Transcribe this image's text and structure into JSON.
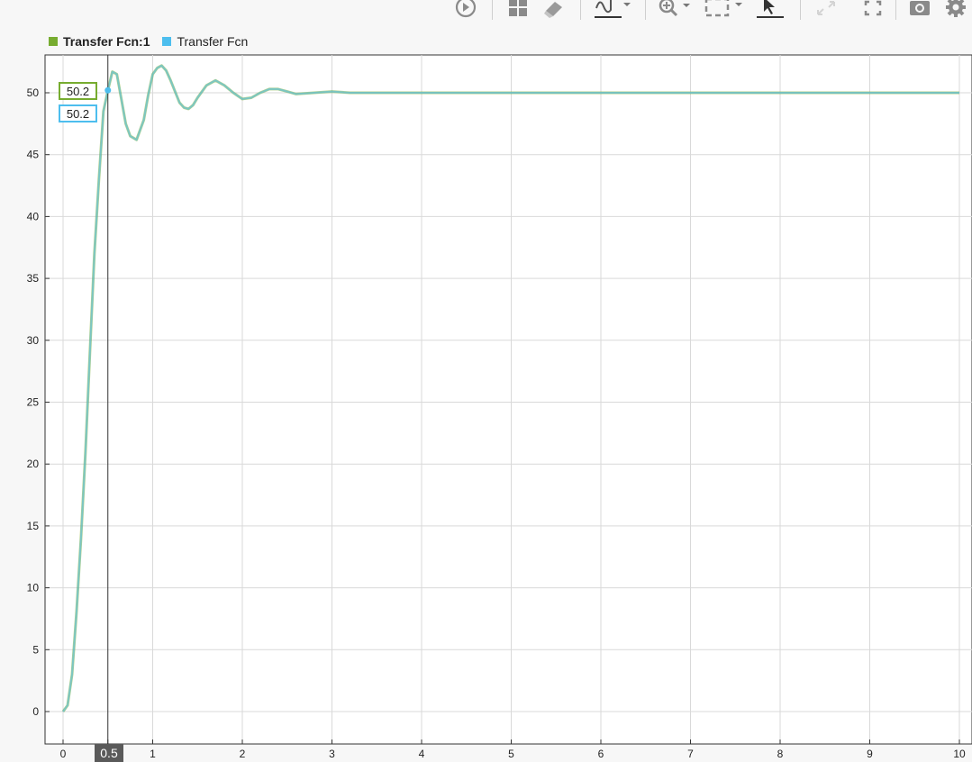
{
  "toolbar": {
    "icons": [
      "run-icon",
      "layout-icon",
      "eraser-icon",
      "signal-style-icon",
      "zoom-icon",
      "fit-to-view-icon",
      "cursor-icon",
      "restore-icon",
      "fullscreen-icon",
      "camera-icon",
      "gear-icon"
    ]
  },
  "legend": {
    "entries": [
      {
        "label": "Transfer Fcn:1",
        "color": "#77ac30",
        "bold": true
      },
      {
        "label": "Transfer Fcn",
        "color": "#4dbeee",
        "bold": false
      }
    ]
  },
  "cursor": {
    "x_label": "0.5",
    "x_value": 0.5,
    "values": [
      "50.2",
      "50.2"
    ]
  },
  "chart_data": {
    "type": "line",
    "title": "",
    "xlabel": "",
    "ylabel": "",
    "xlim": [
      0,
      10
    ],
    "ylim": [
      -2.5,
      53
    ],
    "xticks": [
      0,
      0.5,
      1,
      2,
      3,
      4,
      5,
      6,
      7,
      8,
      9,
      10
    ],
    "yticks": [
      0,
      5,
      10,
      15,
      20,
      25,
      30,
      35,
      40,
      45,
      50
    ],
    "grid": true,
    "legend_position": "top-left",
    "series": [
      {
        "name": "Transfer Fcn:1",
        "color": "#77ac30",
        "x": [
          0,
          0.05,
          0.1,
          0.15,
          0.2,
          0.25,
          0.3,
          0.35,
          0.4,
          0.45,
          0.5,
          0.55,
          0.6,
          0.65,
          0.7,
          0.75,
          0.82,
          0.9,
          0.95,
          1.0,
          1.05,
          1.1,
          1.15,
          1.2,
          1.3,
          1.35,
          1.4,
          1.45,
          1.5,
          1.6,
          1.7,
          1.8,
          1.9,
          2.0,
          2.1,
          2.2,
          2.3,
          2.4,
          2.5,
          2.6,
          2.8,
          3.0,
          3.2,
          3.5,
          4.0,
          5.0,
          6.0,
          7.0,
          8.0,
          9.0,
          10.0
        ],
        "y": [
          0,
          0.5,
          3,
          8,
          14,
          21,
          29,
          37,
          43,
          48.5,
          50.2,
          51.7,
          51.5,
          49.5,
          47.5,
          46.5,
          46.2,
          47.8,
          49.8,
          51.5,
          52.0,
          52.2,
          51.8,
          51.0,
          49.2,
          48.8,
          48.7,
          49.0,
          49.6,
          50.6,
          51.0,
          50.6,
          50.0,
          49.5,
          49.6,
          50.0,
          50.3,
          50.3,
          50.1,
          49.9,
          50.0,
          50.1,
          50.0,
          50.0,
          50.0,
          50.0,
          50.0,
          50.0,
          50.0,
          50.0,
          50.0
        ]
      },
      {
        "name": "Transfer Fcn",
        "color": "#4dbeee",
        "x": [
          0,
          0.05,
          0.1,
          0.15,
          0.2,
          0.25,
          0.3,
          0.35,
          0.4,
          0.45,
          0.5,
          0.55,
          0.6,
          0.65,
          0.7,
          0.75,
          0.82,
          0.9,
          0.95,
          1.0,
          1.05,
          1.1,
          1.15,
          1.2,
          1.3,
          1.35,
          1.4,
          1.45,
          1.5,
          1.6,
          1.7,
          1.8,
          1.9,
          2.0,
          2.1,
          2.2,
          2.3,
          2.4,
          2.5,
          2.6,
          2.8,
          3.0,
          3.2,
          3.5,
          4.0,
          5.0,
          6.0,
          7.0,
          8.0,
          9.0,
          10.0
        ],
        "y": [
          0,
          0.5,
          3,
          8,
          14,
          21,
          29,
          37,
          43,
          48.5,
          50.2,
          51.7,
          51.5,
          49.5,
          47.5,
          46.5,
          46.2,
          47.8,
          49.8,
          51.5,
          52.0,
          52.2,
          51.8,
          51.0,
          49.2,
          48.8,
          48.7,
          49.0,
          49.6,
          50.6,
          51.0,
          50.6,
          50.0,
          49.5,
          49.6,
          50.0,
          50.3,
          50.3,
          50.1,
          49.9,
          50.0,
          50.1,
          50.0,
          50.0,
          50.0,
          50.0,
          50.0,
          50.0,
          50.0,
          50.0,
          50.0
        ]
      }
    ]
  }
}
